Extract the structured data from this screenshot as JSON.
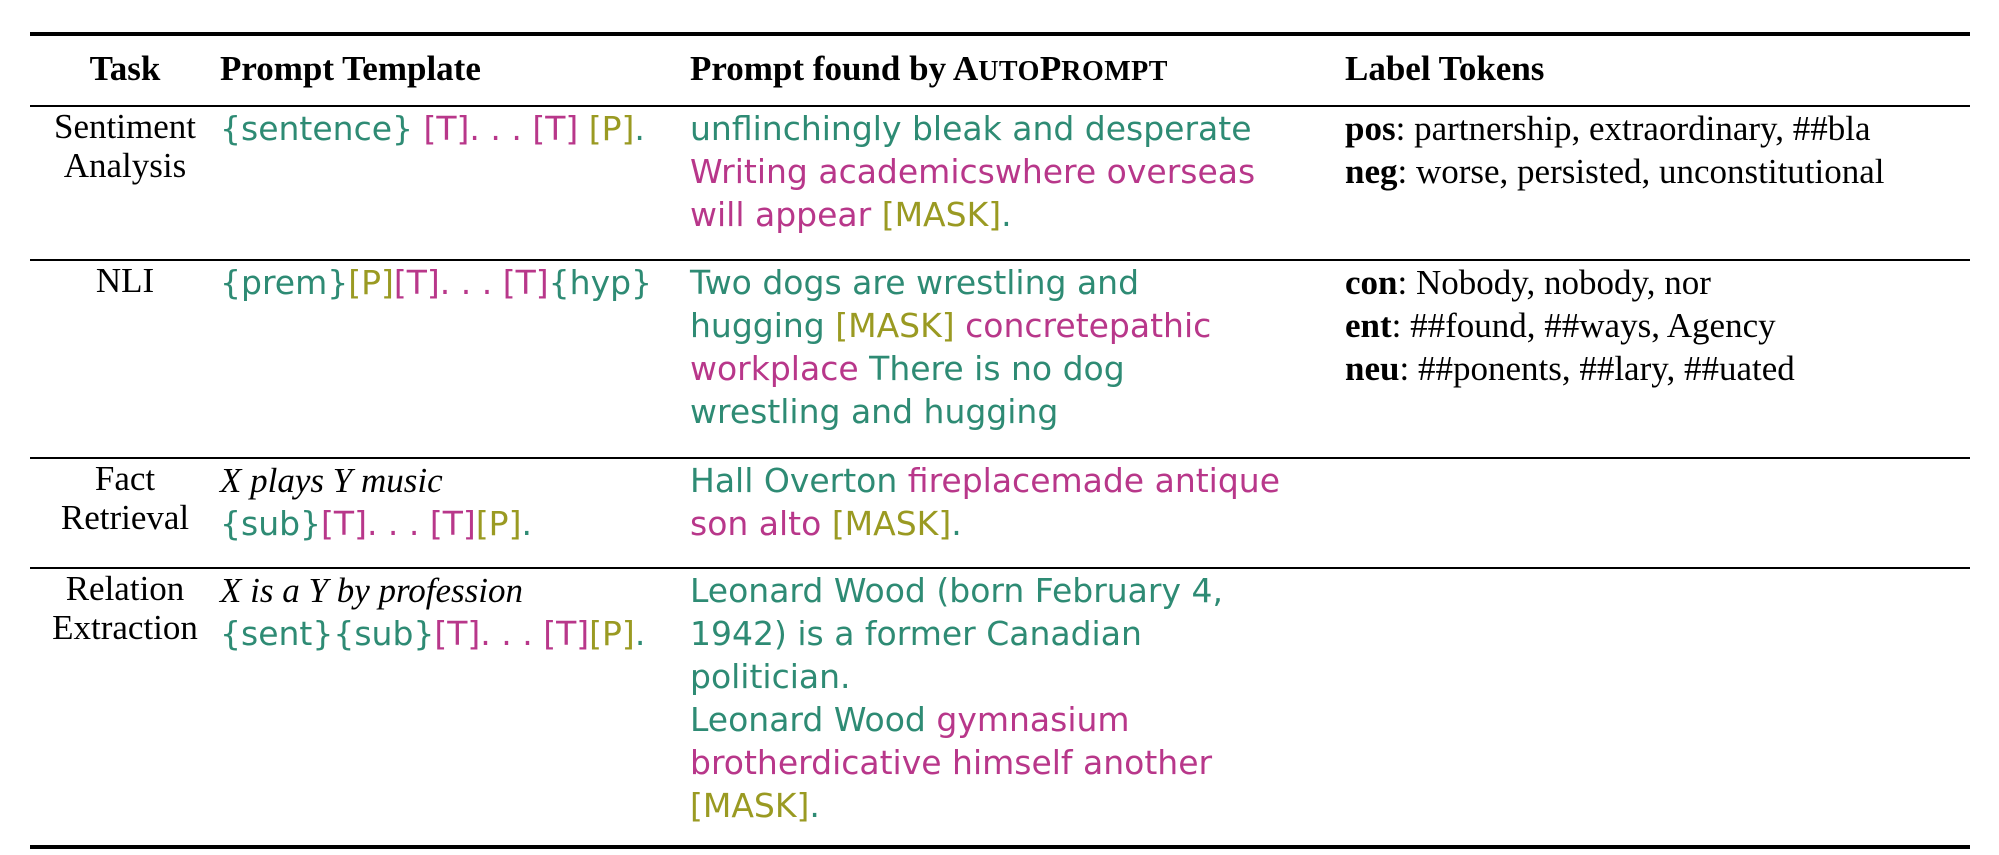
{
  "header": {
    "task": "Task",
    "template": "Prompt Template",
    "found_prefix": "Prompt found by ",
    "found_sc_a": "A",
    "found_sc_b": "UTO",
    "found_sc_c": "P",
    "found_sc_d": "ROMPT",
    "labels": "Label Tokens"
  },
  "rows": [
    {
      "task_l1": "Sentiment",
      "task_l2": "Analysis",
      "template": {
        "a": "{sentence}",
        "b": " [T]. . . [T]",
        "c": " [P]",
        "d": "."
      },
      "found": {
        "p1": "unflinchingly bleak and desperate",
        "p2": "Writing academicswhere overseas",
        "p3": "will appear",
        "p4": "[MASK]",
        "p5": "."
      },
      "labels": [
        {
          "key": "pos",
          "value": ": partnership, extraordinary, ##bla"
        },
        {
          "key": "neg",
          "value": ": worse, persisted, unconstitutional"
        }
      ]
    },
    {
      "task_l1": "NLI",
      "template": {
        "a": "{prem}",
        "b": "[P]",
        "c": "[T]. . . [T]",
        "d": "{hyp}"
      },
      "found": {
        "p1": "Two dogs are wrestling and",
        "p2": "hugging",
        "p3": "[MASK]",
        "p4": "concretepathic",
        "p5": "workplace",
        "p6": "There is no dog",
        "p7": "wrestling and hugging"
      },
      "labels": [
        {
          "key": "con",
          "value": ": Nobody, nobody, nor"
        },
        {
          "key": "ent",
          "value": ": ##found, ##ways, Agency"
        },
        {
          "key": "neu",
          "value": ": ##ponents, ##lary, ##uated"
        }
      ]
    },
    {
      "task_l1": "Fact",
      "task_l2": "Retrieval",
      "template_italic": "X plays Y music",
      "template": {
        "a": "{sub}",
        "b": "[T]. . . [T]",
        "c": "[P]",
        "d": "."
      },
      "found": {
        "p1": "Hall Overton",
        "p2": "fireplacemade antique",
        "p3": "son alto",
        "p4": "[MASK]",
        "p5": "."
      }
    },
    {
      "task_l1": "Relation",
      "task_l2": "Extraction",
      "template_italic": "X is a Y by profession",
      "template": {
        "a": "{sent}{sub}",
        "b": "[T]. . . [T]",
        "c": "[P]",
        "d": "."
      },
      "found": {
        "p1": "Leonard Wood (born February 4,",
        "p2": "1942) is a former Canadian",
        "p3": "politician.",
        "p4": "Leonard Wood",
        "p5": "gymnasium",
        "p6": "brotherdicative himself another",
        "p7": "[MASK]",
        "p8": "."
      }
    }
  ],
  "colors": {
    "context": "#2e8b74",
    "trigger": "#b8378a",
    "mask": "#9a9a22"
  }
}
